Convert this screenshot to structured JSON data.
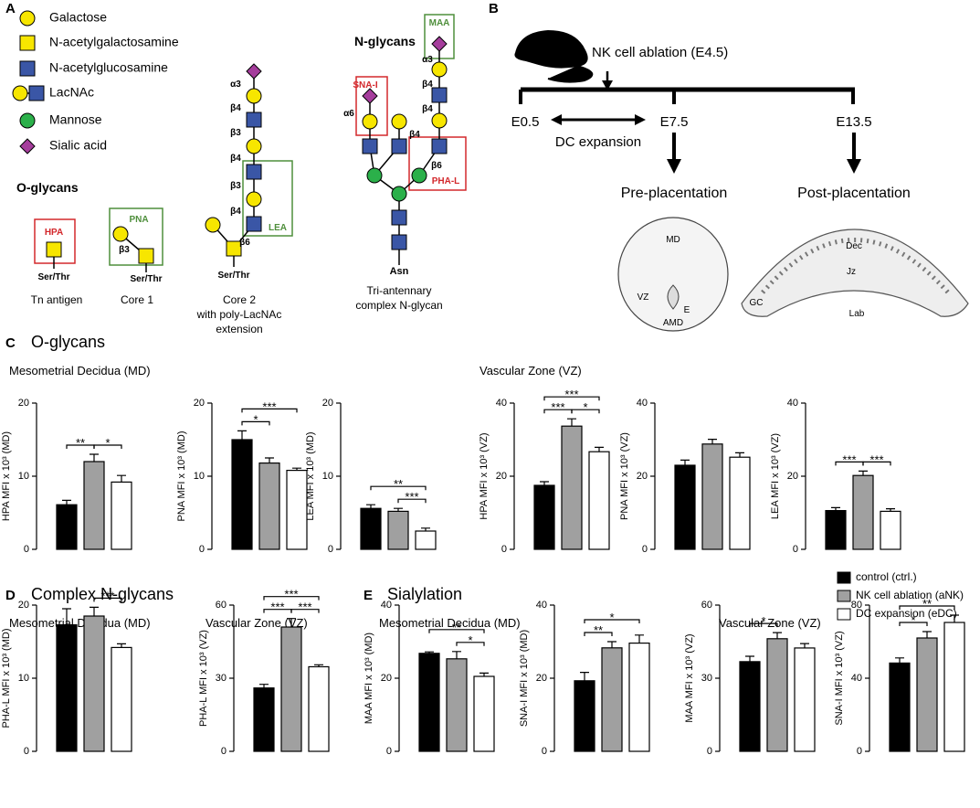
{
  "panel_labels": {
    "a": "A",
    "b": "B",
    "c": "C",
    "d": "D",
    "e": "E"
  },
  "panel_a": {
    "legend": [
      "Galactose",
      "N-acetylgalactosamine",
      "N-acetylglucosamine",
      "LacNAc",
      "Mannose",
      "Sialic acid"
    ],
    "o_glycans": {
      "title": "O-glycans",
      "tn": {
        "lectin": "HPA",
        "linkage": "Ser/Thr",
        "name": "Tn antigen"
      },
      "core1": {
        "lectin": "PNA",
        "bond": "β3",
        "linkage": "Ser/Thr",
        "name": "Core 1"
      },
      "core2": {
        "bonds": [
          "α3",
          "β4",
          "β3",
          "β4",
          "β3",
          "β4",
          "β6"
        ],
        "lectin": "LEA",
        "linkage": "Ser/Thr",
        "name": [
          "Core 2",
          "with poly-LacNAc",
          "extension"
        ]
      }
    },
    "n_glycans": {
      "title": "N-glycans",
      "lectins": [
        "MAA",
        "SNA-I",
        "PHA-L"
      ],
      "bonds": [
        "α3",
        "β4",
        "α6",
        "β4",
        "β4",
        "β6"
      ],
      "anchor": "Asn",
      "name": [
        "Tri-antennary",
        "complex N-glycan"
      ]
    }
  },
  "panel_b": {
    "event": "NK cell ablation (E4.5)",
    "timepoints": [
      "E0.5",
      "E7.5",
      "E13.5"
    ],
    "interval": "DC expansion",
    "stages": [
      "Pre-placentation",
      "Post-placentation"
    ],
    "pre_regions": [
      "MD",
      "VZ",
      "E",
      "AMD"
    ],
    "post_regions": [
      "Dec",
      "Jz",
      "GC",
      "Lab"
    ]
  },
  "sections": [
    {
      "title": "O-glycans",
      "subtitles": [
        "Mesometrial Decidua (MD)",
        "Vascular Zone (VZ)"
      ]
    },
    {
      "title": "Complex N-glycans",
      "subtitles": [
        "Mesometrial Decidua (MD)",
        "Vascular Zone (VZ)"
      ]
    },
    {
      "title": "Sialylation",
      "subtitles": [
        "Mesometrial Decidua (MD)",
        "Vascular Zone (VZ)"
      ]
    }
  ],
  "legend": {
    "entries": [
      {
        "name": "control (ctrl.)",
        "color": "#000000"
      },
      {
        "name": "NK cell ablation (aNK)",
        "color": "#a0a0a0"
      },
      {
        "name": "DC expansion (eDC)",
        "color": "#ffffff"
      }
    ]
  },
  "chart_data": [
    {
      "type": "bar",
      "ylabel": "HPA MFI x 10³ (MD)",
      "categories": [
        null,
        null,
        null
      ],
      "values": [
        6.1,
        12.0,
        9.2
      ],
      "errors": [
        0.6,
        1.0,
        0.9
      ],
      "ylim": [
        0,
        20
      ],
      "yticks": [
        0,
        10,
        20
      ],
      "significance": [
        {
          "bars": [
            0,
            1
          ],
          "label": "**"
        },
        {
          "bars": [
            1,
            2
          ],
          "label": "*"
        }
      ]
    },
    {
      "type": "bar",
      "ylabel": "PNA MFI x 10³ (MD)",
      "categories": [
        null,
        null,
        null
      ],
      "values": [
        15.0,
        11.8,
        10.8
      ],
      "errors": [
        1.2,
        0.7,
        0.3
      ],
      "ylim": [
        0,
        20
      ],
      "yticks": [
        0,
        10,
        20
      ],
      "significance": [
        {
          "bars": [
            0,
            1
          ],
          "label": "*"
        },
        {
          "bars": [
            0,
            2
          ],
          "label": "***"
        }
      ]
    },
    {
      "type": "bar",
      "ylabel": "LEA MFI x 10³ (MD)",
      "categories": [
        null,
        null,
        null
      ],
      "values": [
        5.6,
        5.2,
        2.5
      ],
      "errors": [
        0.5,
        0.4,
        0.4
      ],
      "ylim": [
        0,
        20
      ],
      "yticks": [
        0,
        10,
        20
      ],
      "significance": [
        {
          "bars": [
            1,
            2
          ],
          "label": "***"
        },
        {
          "bars": [
            0,
            2
          ],
          "label": "**"
        }
      ]
    },
    {
      "type": "bar",
      "ylabel": "HPA MFI x 10³ (VZ)",
      "categories": [
        null,
        null,
        null
      ],
      "values": [
        17.5,
        33.7,
        26.7
      ],
      "errors": [
        1.0,
        2.0,
        1.2
      ],
      "ylim": [
        0,
        40
      ],
      "yticks": [
        0,
        20,
        40
      ],
      "significance": [
        {
          "bars": [
            0,
            1
          ],
          "label": "***"
        },
        {
          "bars": [
            1,
            2
          ],
          "label": "*"
        },
        {
          "bars": [
            0,
            2
          ],
          "label": "***"
        }
      ]
    },
    {
      "type": "bar",
      "ylabel": "PNA MFI x 10³ (VZ)",
      "categories": [
        null,
        null,
        null
      ],
      "values": [
        23.0,
        28.8,
        25.2
      ],
      "errors": [
        1.4,
        1.3,
        1.2
      ],
      "ylim": [
        0,
        40
      ],
      "yticks": [
        0,
        20,
        40
      ],
      "significance": []
    },
    {
      "type": "bar",
      "ylabel": "LEA MFI x 10³ (VZ)",
      "categories": [
        null,
        null,
        null
      ],
      "values": [
        10.6,
        20.2,
        10.4
      ],
      "errors": [
        0.8,
        1.2,
        0.7
      ],
      "ylim": [
        0,
        40
      ],
      "yticks": [
        0,
        20,
        40
      ],
      "significance": [
        {
          "bars": [
            0,
            1
          ],
          "label": "***"
        },
        {
          "bars": [
            1,
            2
          ],
          "label": "***"
        }
      ]
    },
    {
      "type": "bar",
      "ylabel": "PHA-L MFI x 10³ (MD)",
      "categories": [
        null,
        null,
        null
      ],
      "values": [
        17.3,
        18.5,
        14.2
      ],
      "errors": [
        2.2,
        1.2,
        0.5
      ],
      "ylim": [
        0,
        20
      ],
      "yticks": [
        0,
        10,
        20
      ],
      "significance": [
        {
          "bars": [
            1,
            2
          ],
          "label": "***"
        }
      ]
    },
    {
      "type": "bar",
      "ylabel": "PHA-L MFI x 10³ (VZ)",
      "categories": [
        null,
        null,
        null
      ],
      "values": [
        26.0,
        51.0,
        34.7
      ],
      "errors": [
        1.5,
        3.5,
        0.8
      ],
      "ylim": [
        0,
        60
      ],
      "yticks": [
        0,
        30,
        60
      ],
      "significance": [
        {
          "bars": [
            0,
            1
          ],
          "label": "***"
        },
        {
          "bars": [
            1,
            2
          ],
          "label": "***"
        },
        {
          "bars": [
            0,
            2
          ],
          "label": "***"
        }
      ]
    },
    {
      "type": "bar",
      "ylabel": "MAA MFI x 10³ (MD)",
      "categories": [
        null,
        null,
        null
      ],
      "values": [
        26.8,
        25.3,
        20.5
      ],
      "errors": [
        0.4,
        2.0,
        0.9
      ],
      "ylim": [
        0,
        40
      ],
      "yticks": [
        0,
        20,
        40
      ],
      "significance": [
        {
          "bars": [
            1,
            2
          ],
          "label": "*"
        },
        {
          "bars": [
            0,
            2
          ],
          "label": "**"
        }
      ]
    },
    {
      "type": "bar",
      "ylabel": "SNA-I MFI x 10³ (MD)",
      "categories": [
        null,
        null,
        null
      ],
      "values": [
        19.3,
        28.3,
        29.6
      ],
      "errors": [
        2.3,
        1.7,
        2.2
      ],
      "ylim": [
        0,
        40
      ],
      "yticks": [
        0,
        20,
        40
      ],
      "significance": [
        {
          "bars": [
            0,
            1
          ],
          "label": "**"
        },
        {
          "bars": [
            0,
            2
          ],
          "label": "*"
        }
      ]
    },
    {
      "type": "bar",
      "ylabel": "MAA MFI x 10³ (VZ)",
      "categories": [
        null,
        null,
        null
      ],
      "values": [
        36.8,
        46.2,
        42.4
      ],
      "errors": [
        2.2,
        2.5,
        1.8
      ],
      "ylim": [
        0,
        60
      ],
      "yticks": [
        0,
        30,
        60
      ],
      "significance": [
        {
          "bars": [
            0,
            1
          ],
          "label": "*"
        }
      ]
    },
    {
      "type": "bar",
      "ylabel": "SNA-I MFI x 10³ (VZ)",
      "categories": [
        null,
        null,
        null
      ],
      "values": [
        48.3,
        62.0,
        70.5
      ],
      "errors": [
        2.8,
        3.5,
        4.0
      ],
      "ylim": [
        0,
        80
      ],
      "yticks": [
        0,
        40,
        80
      ],
      "significance": [
        {
          "bars": [
            0,
            1
          ],
          "label": "*"
        },
        {
          "bars": [
            0,
            2
          ],
          "label": "**"
        }
      ]
    }
  ]
}
